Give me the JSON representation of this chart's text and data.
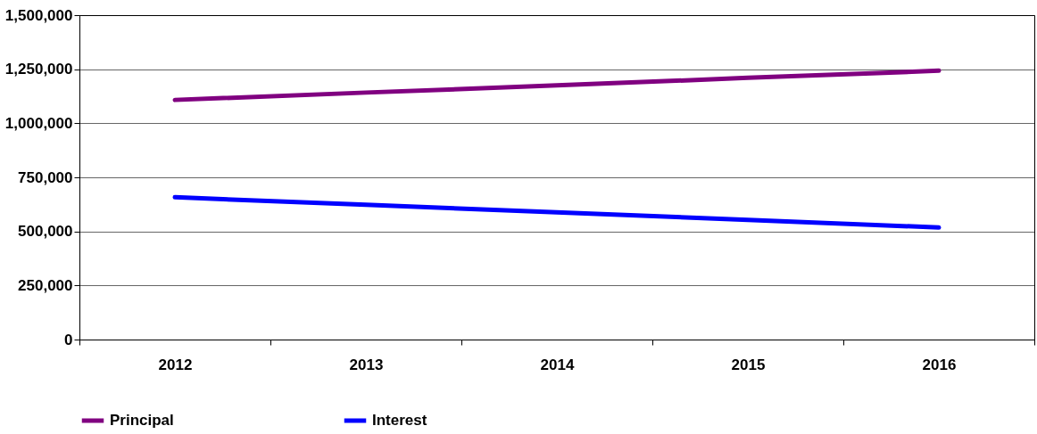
{
  "chart_data": {
    "type": "line",
    "categories": [
      "2012",
      "2013",
      "2014",
      "2015",
      "2016"
    ],
    "series": [
      {
        "name": "Principal",
        "color": "#800080",
        "values": [
          1108000,
          1142000,
          1175000,
          1210000,
          1243000
        ]
      },
      {
        "name": "Interest",
        "color": "#0000ff",
        "values": [
          658000,
          623000,
          588000,
          553000,
          518000
        ]
      }
    ],
    "ylim": [
      0,
      1500000
    ],
    "yticks": [
      {
        "value": 0,
        "label": "0"
      },
      {
        "value": 250000,
        "label": "250,000"
      },
      {
        "value": 500000,
        "label": "500,000"
      },
      {
        "value": 750000,
        "label": "750,000"
      },
      {
        "value": 1000000,
        "label": "1,000,000"
      },
      {
        "value": 1250000,
        "label": "1,250,000"
      },
      {
        "value": 1500000,
        "label": "1,500,000"
      }
    ],
    "grid": "y",
    "legend": "bottom",
    "marker": "none",
    "line_style": "solid"
  }
}
